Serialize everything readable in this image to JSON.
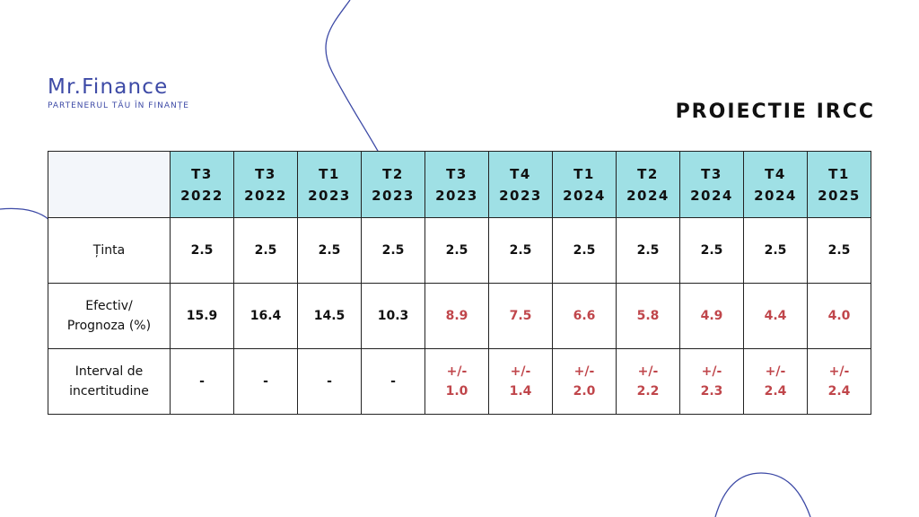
{
  "logo": {
    "name": "Mr.Finance",
    "tagline": "PARTENERUL TĂU ÎN FINANȚE"
  },
  "title": "PROIECTIE IRCC",
  "colors": {
    "header_bg": "#9fe0e5",
    "brand": "#3d4aa6",
    "forecast": "#c0464b"
  },
  "table": {
    "periods": [
      {
        "q": "T3",
        "y": "2022"
      },
      {
        "q": "T3",
        "y": "2022"
      },
      {
        "q": "T1",
        "y": "2023"
      },
      {
        "q": "T2",
        "y": "2023"
      },
      {
        "q": "T3",
        "y": "2023"
      },
      {
        "q": "T4",
        "y": "2023"
      },
      {
        "q": "T1",
        "y": "2024"
      },
      {
        "q": "T2",
        "y": "2024"
      },
      {
        "q": "T3",
        "y": "2024"
      },
      {
        "q": "T4",
        "y": "2024"
      },
      {
        "q": "T1",
        "y": "2025"
      }
    ],
    "rows": {
      "target": {
        "label": "Ținta",
        "values": [
          "2.5",
          "2.5",
          "2.5",
          "2.5",
          "2.5",
          "2.5",
          "2.5",
          "2.5",
          "2.5",
          "2.5",
          "2.5"
        ]
      },
      "actual": {
        "label_line1": "Efectiv/",
        "label_line2": "Prognoza (%)",
        "values": [
          "15.9",
          "16.4",
          "14.5",
          "10.3",
          "8.9",
          "7.5",
          "6.6",
          "5.8",
          "4.9",
          "4.4",
          "4.0"
        ]
      },
      "uncertainty": {
        "label_line1": "Interval de",
        "label_line2": "incertitudine",
        "values": [
          {
            "a": "-",
            "b": ""
          },
          {
            "a": "-",
            "b": ""
          },
          {
            "a": "-",
            "b": ""
          },
          {
            "a": "-",
            "b": ""
          },
          {
            "a": "+/-",
            "b": "1.0"
          },
          {
            "a": "+/-",
            "b": "1.4"
          },
          {
            "a": "+/-",
            "b": "2.0"
          },
          {
            "a": "+/-",
            "b": "2.2"
          },
          {
            "a": "+/-",
            "b": "2.3"
          },
          {
            "a": "+/-",
            "b": "2.4"
          },
          {
            "a": "+/-",
            "b": "2.4"
          }
        ]
      }
    }
  }
}
